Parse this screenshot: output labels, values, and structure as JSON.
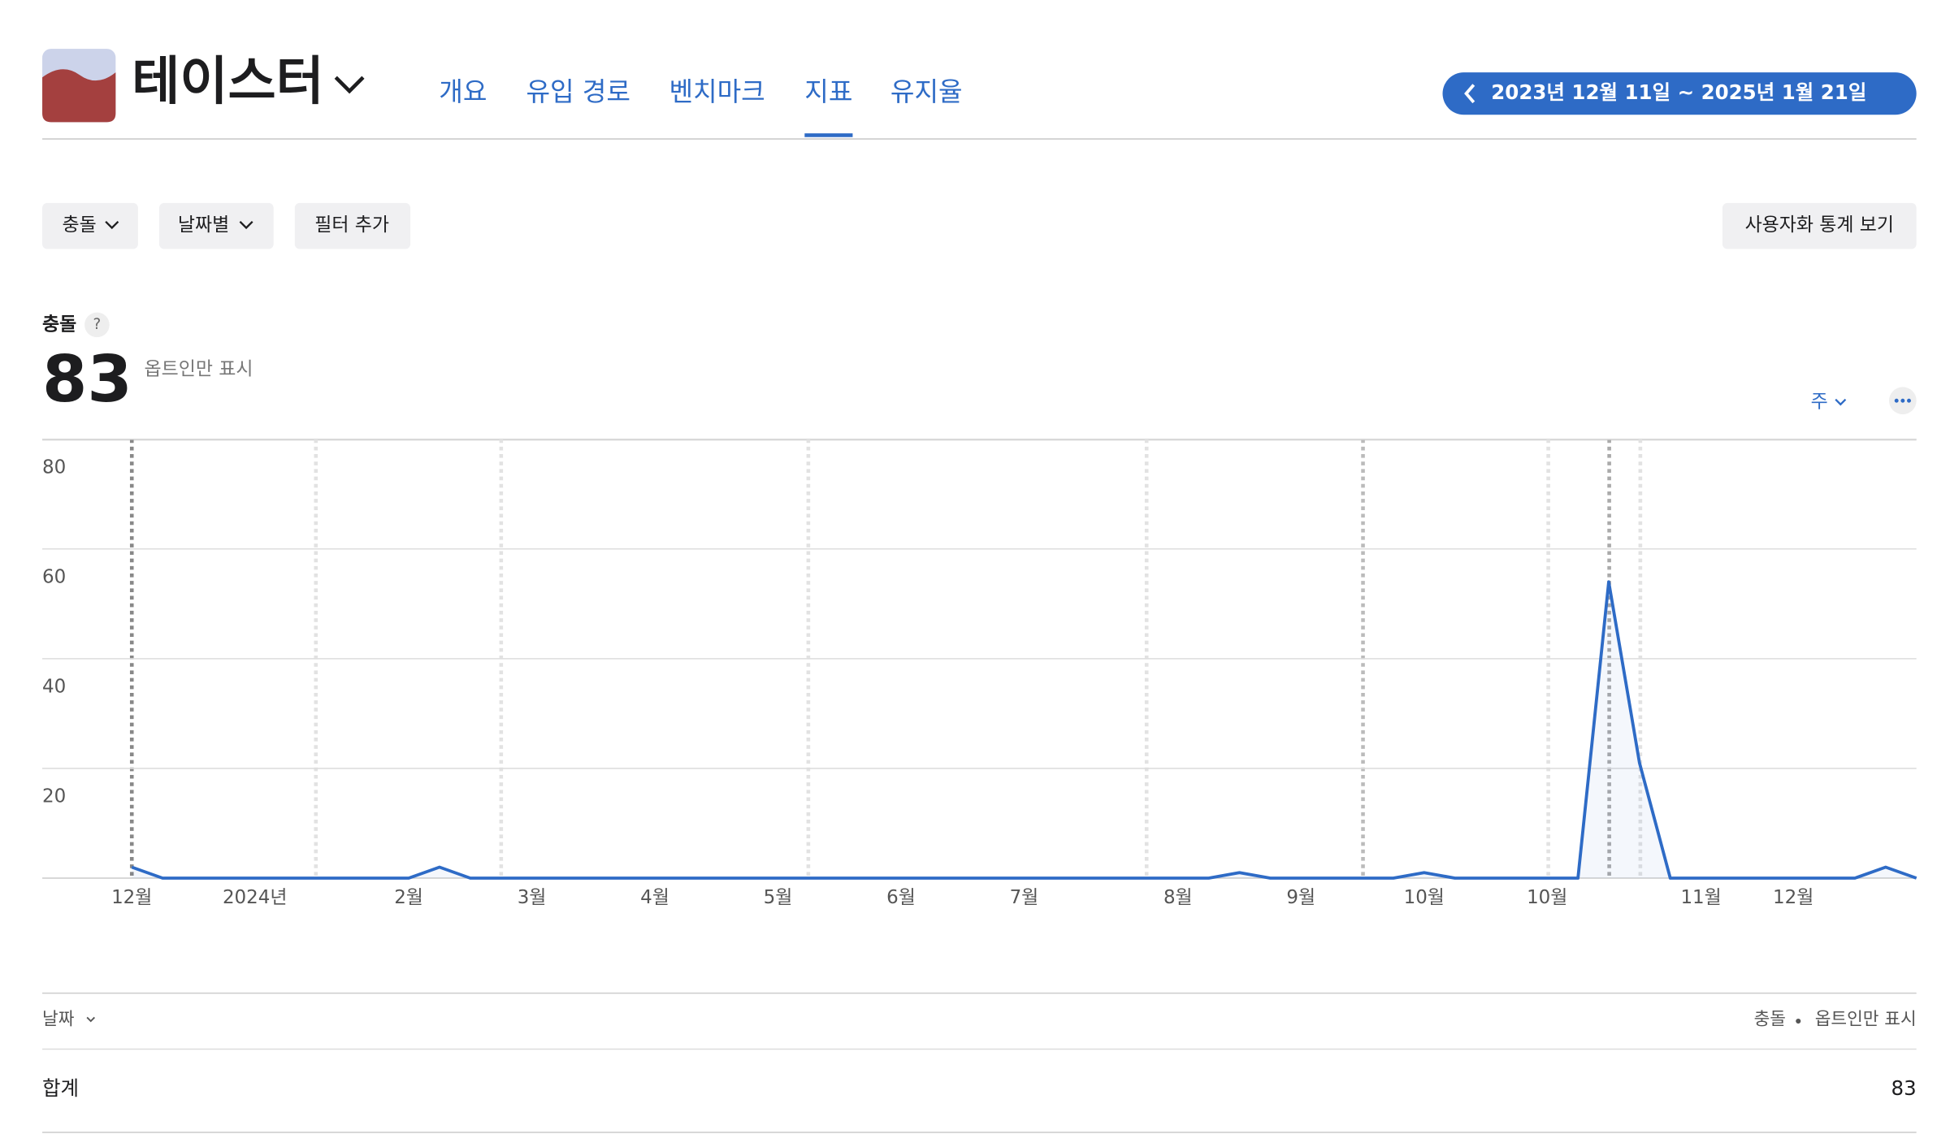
{
  "app": {
    "name": "테이스터"
  },
  "tabs": [
    "개요",
    "유입 경로",
    "벤치마크",
    "지표",
    "유지율"
  ],
  "active_tab": 3,
  "date_range": "2023년 12월 11일 ~ 2025년 1월 21일",
  "filters": [
    "충돌",
    "날짜별",
    "필터 추가"
  ],
  "custom_button": "사용자화 통계 보기",
  "metric": {
    "label": "충돌",
    "help": "?",
    "value": 83,
    "note": "옵트인만 표시"
  },
  "interval": "주",
  "chart_data": {
    "type": "line",
    "categories": [
      "12월",
      null,
      null,
      null,
      "2024년",
      null,
      null,
      null,
      null,
      "2월",
      null,
      null,
      null,
      "3월",
      null,
      null,
      null,
      "4월",
      null,
      null,
      null,
      "5월",
      null,
      null,
      null,
      "6월",
      null,
      null,
      null,
      "7월",
      null,
      null,
      null,
      null,
      "8월",
      null,
      null,
      null,
      "9월",
      null,
      null,
      null,
      "10월",
      null,
      null,
      null,
      "10월",
      null,
      null,
      null,
      null,
      "11월",
      null,
      null,
      "12월",
      null,
      null,
      null,
      null
    ],
    "values": [
      2,
      0,
      0,
      0,
      0,
      0,
      0,
      0,
      0,
      0,
      2,
      0,
      0,
      0,
      0,
      0,
      0,
      0,
      0,
      0,
      0,
      0,
      0,
      0,
      0,
      0,
      0,
      0,
      0,
      0,
      0,
      0,
      0,
      0,
      0,
      0,
      1,
      0,
      0,
      0,
      0,
      0,
      1,
      0,
      0,
      0,
      0,
      0,
      54,
      21,
      0,
      0,
      0,
      0,
      0,
      0,
      0,
      2,
      0
    ],
    "color": "#2e6bc6",
    "ylim": [
      0,
      80
    ],
    "yticks": [
      20,
      40,
      60,
      80
    ],
    "grid": true
  },
  "table": {
    "header": [
      "날짜",
      "충돌",
      "옵트인만 표시"
    ],
    "rows": [
      [
        "합계",
        83
      ]
    ]
  }
}
